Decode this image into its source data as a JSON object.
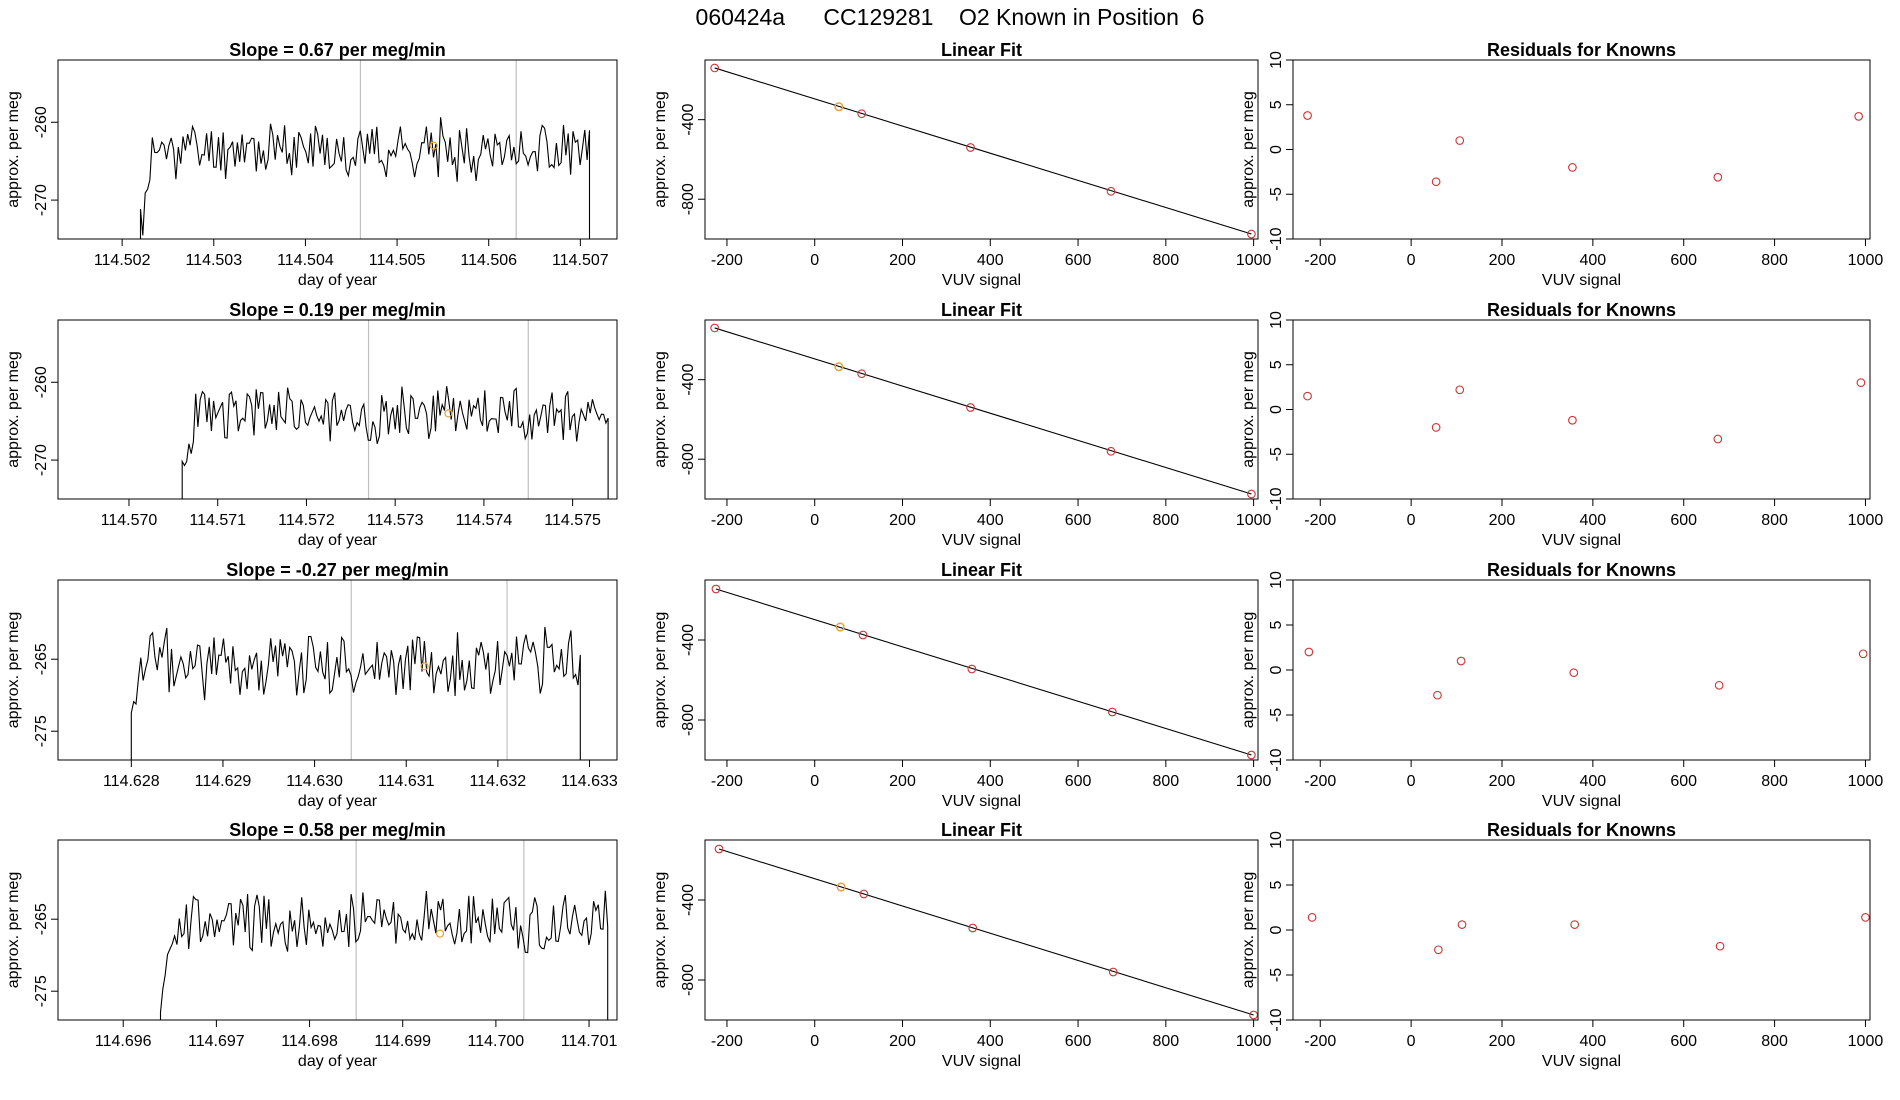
{
  "figure_title": "060424a      CC129281    O2 Known in Position  6",
  "colors": {
    "series_line": "#000000",
    "point": "#cc3333",
    "highlight_point": "#e8a33a",
    "marker_line": "#c0c0c0"
  },
  "chart_data": [
    {
      "type": "line",
      "title": "Slope =  0.67  per meg/min",
      "xlabel": "day of year",
      "ylabel": "approx. per meg",
      "xlim": [
        114.5013,
        114.5074
      ],
      "ylim": [
        -275,
        -252
      ],
      "xticks": [
        114.502,
        114.503,
        114.504,
        114.505,
        114.506,
        114.507
      ],
      "xtick_labels": [
        "114.502",
        "114.503",
        "114.504",
        "114.505",
        "114.506",
        "114.507"
      ],
      "yticks": [
        -270,
        -260
      ],
      "ytick_labels": [
        "-270",
        "-260"
      ],
      "trace_start": 114.5022,
      "trace_end": 114.5071,
      "level": -263.5,
      "noise": 3,
      "seed": 11,
      "vlines": [
        114.5046,
        114.5063
      ],
      "highlight": {
        "x": 114.5054,
        "y": -263
      }
    },
    {
      "type": "scatter",
      "title": "Linear Fit",
      "xlabel": "VUV signal",
      "ylabel": "approx. per meg",
      "xlim": [
        -250,
        1010
      ],
      "ylim": [
        -1000,
        -100
      ],
      "xticks": [
        -200,
        0,
        200,
        400,
        600,
        800,
        1000
      ],
      "xtick_labels": [
        "-200",
        "0",
        "200",
        "400",
        "600",
        "800",
        "1000"
      ],
      "yticks": [
        -800,
        -400
      ],
      "ytick_labels": [
        "-800",
        "-400"
      ],
      "fit_line": [
        [
          -228,
          -140
        ],
        [
          995,
          -975
        ]
      ],
      "points": [
        {
          "x": -228,
          "y": -140
        },
        {
          "x": 55,
          "y": -335
        },
        {
          "x": 107,
          "y": -370
        },
        {
          "x": 355,
          "y": -540
        },
        {
          "x": 675,
          "y": -760
        },
        {
          "x": 995,
          "y": -975
        }
      ],
      "highlight": {
        "x": 55,
        "y": -335
      }
    },
    {
      "type": "scatter",
      "title": "Residuals for Knowns",
      "xlabel": "VUV signal",
      "ylabel": "approx. per meg",
      "xlim": [
        -260,
        1010
      ],
      "ylim": [
        -10,
        10
      ],
      "xticks": [
        -200,
        0,
        200,
        400,
        600,
        800,
        1000
      ],
      "xtick_labels": [
        "-200",
        "0",
        "200",
        "400",
        "600",
        "800",
        "1000"
      ],
      "yticks": [
        -10,
        -5,
        0,
        5,
        10
      ],
      "ytick_labels": [
        "-10",
        "-5",
        "0",
        "5",
        "10"
      ],
      "points": [
        {
          "x": -228,
          "y": 3.8
        },
        {
          "x": 55,
          "y": -3.6
        },
        {
          "x": 107,
          "y": 1.0
        },
        {
          "x": 355,
          "y": -2.0
        },
        {
          "x": 675,
          "y": -3.1
        },
        {
          "x": 985,
          "y": 3.7
        }
      ]
    },
    {
      "type": "line",
      "title": "Slope =  0.19  per meg/min",
      "xlabel": "day of year",
      "ylabel": "approx. per meg",
      "xlim": [
        114.5692,
        114.5755
      ],
      "ylim": [
        -275,
        -252
      ],
      "xticks": [
        114.57,
        114.571,
        114.572,
        114.573,
        114.574,
        114.575
      ],
      "xtick_labels": [
        "114.570",
        "114.571",
        "114.572",
        "114.573",
        "114.574",
        "114.575"
      ],
      "yticks": [
        -270,
        -260
      ],
      "ytick_labels": [
        "-270",
        "-260"
      ],
      "trace_start": 114.5706,
      "trace_end": 114.5754,
      "level": -264,
      "noise": 3,
      "seed": 23,
      "vlines": [
        114.5727,
        114.5745
      ],
      "highlight": {
        "x": 114.5736,
        "y": -264
      }
    },
    {
      "type": "scatter",
      "title": "Linear Fit",
      "xlabel": "VUV signal",
      "ylabel": "approx. per meg",
      "xlim": [
        -250,
        1010
      ],
      "ylim": [
        -1000,
        -100
      ],
      "xticks": [
        -200,
        0,
        200,
        400,
        600,
        800,
        1000
      ],
      "xtick_labels": [
        "-200",
        "0",
        "200",
        "400",
        "600",
        "800",
        "1000"
      ],
      "yticks": [
        -800,
        -400
      ],
      "ytick_labels": [
        "-800",
        "-400"
      ],
      "fit_line": [
        [
          -228,
          -140
        ],
        [
          995,
          -975
        ]
      ],
      "points": [
        {
          "x": -228,
          "y": -140
        },
        {
          "x": 55,
          "y": -335
        },
        {
          "x": 107,
          "y": -370
        },
        {
          "x": 355,
          "y": -540
        },
        {
          "x": 675,
          "y": -760
        },
        {
          "x": 995,
          "y": -975
        }
      ],
      "highlight": {
        "x": 55,
        "y": -335
      }
    },
    {
      "type": "scatter",
      "title": "Residuals for Knowns",
      "xlabel": "VUV signal",
      "ylabel": "approx. per meg",
      "xlim": [
        -260,
        1010
      ],
      "ylim": [
        -10,
        10
      ],
      "xticks": [
        -200,
        0,
        200,
        400,
        600,
        800,
        1000
      ],
      "xtick_labels": [
        "-200",
        "0",
        "200",
        "400",
        "600",
        "800",
        "1000"
      ],
      "yticks": [
        -10,
        -5,
        0,
        5,
        10
      ],
      "ytick_labels": [
        "-10",
        "-5",
        "0",
        "5",
        "10"
      ],
      "points": [
        {
          "x": -228,
          "y": 1.5
        },
        {
          "x": 55,
          "y": -2.0
        },
        {
          "x": 107,
          "y": 2.2
        },
        {
          "x": 355,
          "y": -1.2
        },
        {
          "x": 675,
          "y": -3.3
        },
        {
          "x": 990,
          "y": 3.0
        }
      ]
    },
    {
      "type": "line",
      "title": "Slope =  -0.27  per meg/min",
      "xlabel": "day of year",
      "ylabel": "approx. per meg",
      "xlim": [
        114.6272,
        114.6333
      ],
      "ylim": [
        -279,
        -254
      ],
      "xticks": [
        114.628,
        114.629,
        114.63,
        114.631,
        114.632,
        114.633
      ],
      "xtick_labels": [
        "114.628",
        "114.629",
        "114.630",
        "114.631",
        "114.632",
        "114.633"
      ],
      "yticks": [
        -275,
        -265
      ],
      "ytick_labels": [
        "-275",
        "-265"
      ],
      "trace_start": 114.628,
      "trace_end": 114.6329,
      "level": -265.5,
      "noise": 4,
      "seed": 37,
      "vlines": [
        114.6304,
        114.6321
      ],
      "highlight": {
        "x": 114.6312,
        "y": -266
      }
    },
    {
      "type": "scatter",
      "title": "Linear Fit",
      "xlabel": "VUV signal",
      "ylabel": "approx. per meg",
      "xlim": [
        -250,
        1010
      ],
      "ylim": [
        -1000,
        -100
      ],
      "xticks": [
        -200,
        0,
        200,
        400,
        600,
        800,
        1000
      ],
      "xtick_labels": [
        "-200",
        "0",
        "200",
        "400",
        "600",
        "800",
        "1000"
      ],
      "yticks": [
        -800,
        -400
      ],
      "ytick_labels": [
        "-800",
        "-400"
      ],
      "fit_line": [
        [
          -225,
          -145
        ],
        [
          995,
          -975
        ]
      ],
      "points": [
        {
          "x": -225,
          "y": -145
        },
        {
          "x": 58,
          "y": -335
        },
        {
          "x": 110,
          "y": -375
        },
        {
          "x": 358,
          "y": -545
        },
        {
          "x": 678,
          "y": -760
        },
        {
          "x": 995,
          "y": -975
        }
      ],
      "highlight": {
        "x": 58,
        "y": -335
      }
    },
    {
      "type": "scatter",
      "title": "Residuals for Knowns",
      "xlabel": "VUV signal",
      "ylabel": "approx. per meg",
      "xlim": [
        -260,
        1010
      ],
      "ylim": [
        -10,
        10
      ],
      "xticks": [
        -200,
        0,
        200,
        400,
        600,
        800,
        1000
      ],
      "xtick_labels": [
        "-200",
        "0",
        "200",
        "400",
        "600",
        "800",
        "1000"
      ],
      "yticks": [
        -10,
        -5,
        0,
        5,
        10
      ],
      "ytick_labels": [
        "-10",
        "-5",
        "0",
        "5",
        "10"
      ],
      "points": [
        {
          "x": -225,
          "y": 2.0
        },
        {
          "x": 58,
          "y": -2.8
        },
        {
          "x": 110,
          "y": 1.0
        },
        {
          "x": 358,
          "y": -0.3
        },
        {
          "x": 678,
          "y": -1.7
        },
        {
          "x": 995,
          "y": 1.8
        }
      ]
    },
    {
      "type": "line",
      "title": "Slope =  0.58  per meg/min",
      "xlabel": "day of year",
      "ylabel": "approx. per meg",
      "xlim": [
        114.6953,
        114.7013
      ],
      "ylim": [
        -279,
        -254
      ],
      "xticks": [
        114.696,
        114.697,
        114.698,
        114.699,
        114.7,
        114.701
      ],
      "xtick_labels": [
        "114.696",
        "114.697",
        "114.698",
        "114.699",
        "114.700",
        "114.701"
      ],
      "yticks": [
        -275,
        -265
      ],
      "ytick_labels": [
        "-275",
        "-265"
      ],
      "trace_start": 114.6964,
      "trace_end": 114.7012,
      "level": -265.5,
      "noise": 3.5,
      "seed": 53,
      "vlines": [
        114.6985,
        114.7003
      ],
      "highlight": {
        "x": 114.6994,
        "y": -267
      }
    },
    {
      "type": "scatter",
      "title": "Linear Fit",
      "xlabel": "VUV signal",
      "ylabel": "approx. per meg",
      "xlim": [
        -250,
        1010
      ],
      "ylim": [
        -1000,
        -100
      ],
      "xticks": [
        -200,
        0,
        200,
        400,
        600,
        800,
        1000
      ],
      "xtick_labels": [
        "-200",
        "0",
        "200",
        "400",
        "600",
        "800",
        "1000"
      ],
      "yticks": [
        -800,
        -400
      ],
      "ytick_labels": [
        "-800",
        "-400"
      ],
      "fit_line": [
        [
          -218,
          -145
        ],
        [
          1000,
          -975
        ]
      ],
      "points": [
        {
          "x": -218,
          "y": -145
        },
        {
          "x": 60,
          "y": -335
        },
        {
          "x": 112,
          "y": -370
        },
        {
          "x": 360,
          "y": -540
        },
        {
          "x": 680,
          "y": -760
        },
        {
          "x": 1000,
          "y": -975
        }
      ],
      "highlight": {
        "x": 60,
        "y": -335
      }
    },
    {
      "type": "scatter",
      "title": "Residuals for Knowns",
      "xlabel": "VUV signal",
      "ylabel": "approx. per meg",
      "xlim": [
        -260,
        1010
      ],
      "ylim": [
        -10,
        10
      ],
      "xticks": [
        -200,
        0,
        200,
        400,
        600,
        800,
        1000
      ],
      "xtick_labels": [
        "-200",
        "0",
        "200",
        "400",
        "600",
        "800",
        "1000"
      ],
      "yticks": [
        -10,
        -5,
        0,
        5,
        10
      ],
      "ytick_labels": [
        "-10",
        "-5",
        "0",
        "5",
        "10"
      ],
      "points": [
        {
          "x": -218,
          "y": 1.4
        },
        {
          "x": 60,
          "y": -2.2
        },
        {
          "x": 112,
          "y": 0.6
        },
        {
          "x": 360,
          "y": 0.6
        },
        {
          "x": 680,
          "y": -1.8
        },
        {
          "x": 1000,
          "y": 1.4
        }
      ]
    }
  ]
}
